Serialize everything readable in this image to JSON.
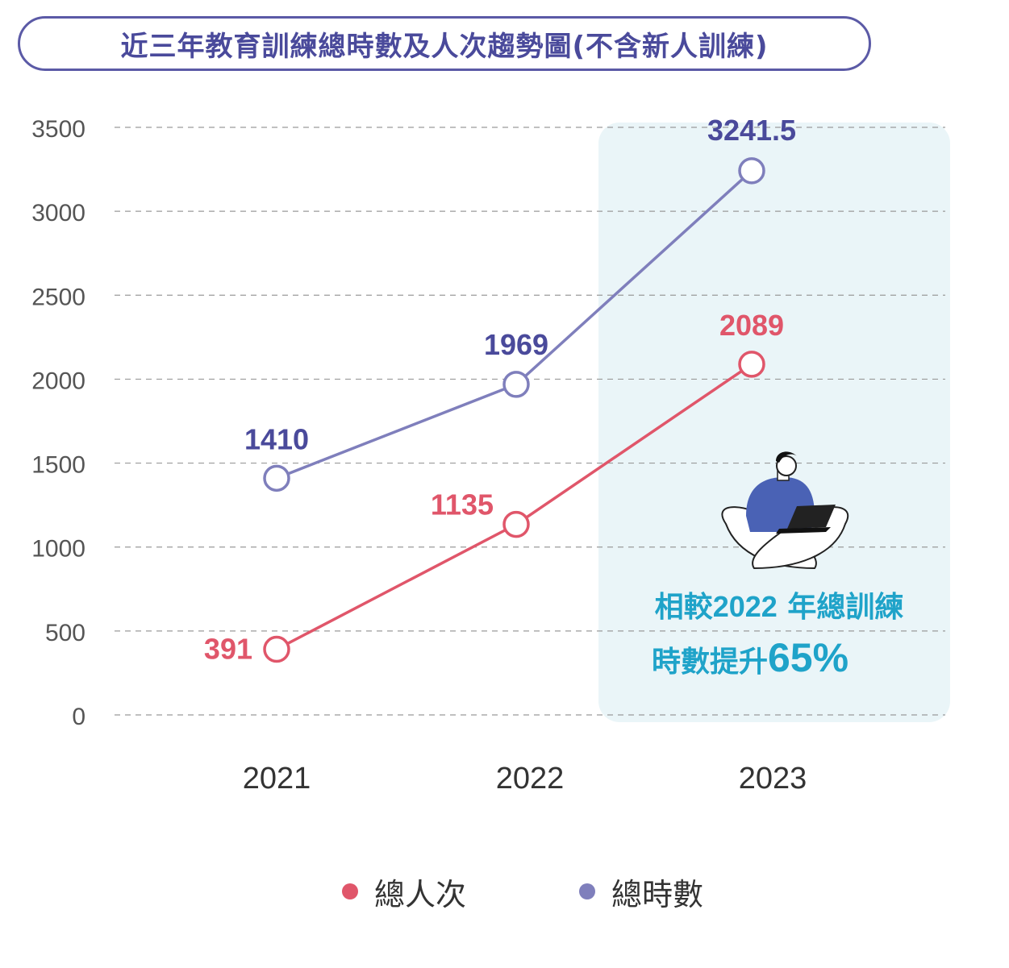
{
  "title": "近三年教育訓練總時數及人次趨勢圖(不含新人訓練)",
  "colors": {
    "hours": "#7f7fbc",
    "hours_label": "#4a4a9b",
    "people": "#e0566a",
    "highlight_bg": "#eaf5f8",
    "callout": "#1fa3c9",
    "grid": "#9a9a9a",
    "axis_text": "#555555"
  },
  "chart_data": {
    "type": "line",
    "categories": [
      "2021",
      "2022",
      "2023"
    ],
    "ylim": [
      0,
      3500
    ],
    "yticks": [
      "0",
      "500",
      "1000",
      "1500",
      "2000",
      "2500",
      "3000",
      "3500"
    ],
    "grid": true,
    "legend_position": "bottom",
    "series": [
      {
        "name": "總人次",
        "values": [
          391,
          1135,
          2089
        ],
        "labels": [
          "391",
          "1135",
          "2089"
        ]
      },
      {
        "name": "總時數",
        "values": [
          1410,
          1969,
          3241.5
        ],
        "labels": [
          "1410",
          "1969",
          "3241.5"
        ]
      }
    ],
    "highlight_category": "2023",
    "annotation": {
      "line1_prefix": "相較",
      "line1_number": "2022",
      "line1_suffix": " 年總訓練",
      "line2_prefix": "時數提升",
      "line2_number": "65%"
    }
  },
  "legend": [
    {
      "label": "總人次"
    },
    {
      "label": "總時數"
    }
  ]
}
